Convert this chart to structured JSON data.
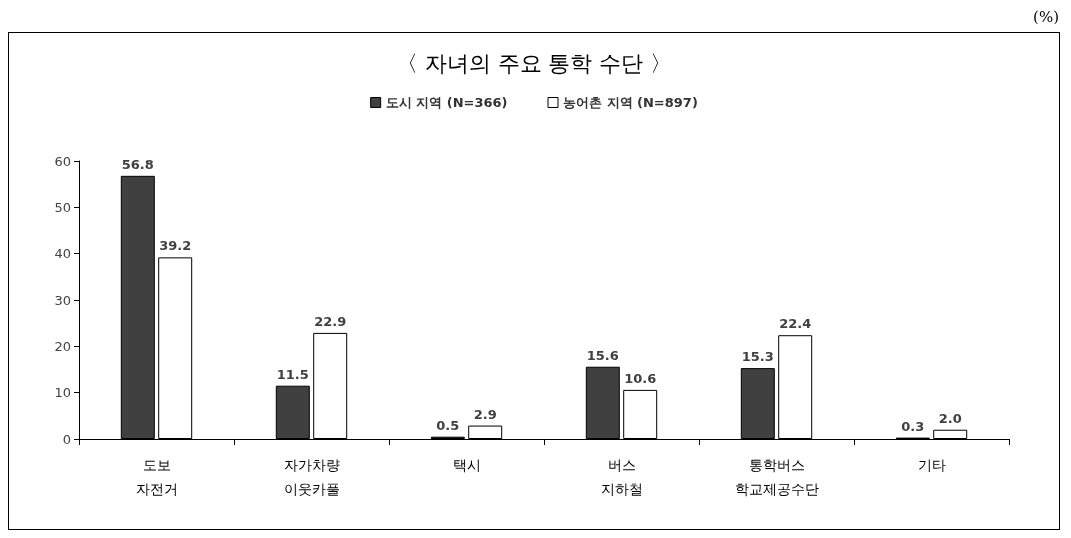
{
  "chart_data": {
    "type": "bar",
    "title": "〈 자녀의 주요 통학 수단 〉",
    "annotations": [
      "(%)"
    ],
    "categories": [
      "도보\n자전거",
      "자가차량\n이웃카풀",
      "택시",
      "버스\n지하철",
      "통학버스\n학교제공수단",
      "기타"
    ],
    "series": [
      {
        "name": "도시 지역 (N=366)",
        "color": "#404040",
        "values": [
          56.8,
          11.5,
          0.5,
          15.6,
          15.3,
          0.3
        ],
        "value_labels": [
          "56.8",
          "11.5",
          "0.5",
          "15.6",
          "15.3",
          "0.3"
        ]
      },
      {
        "name": "농어촌 지역 (N=897)",
        "color": "#ffffff",
        "values": [
          39.2,
          22.9,
          2.9,
          10.6,
          22.4,
          2.0
        ],
        "value_labels": [
          "39.2",
          "22.9",
          "2.9",
          "10.6",
          "22.4",
          "2.0"
        ]
      }
    ],
    "ylim": [
      0,
      60
    ],
    "yticks": [
      0,
      10,
      20,
      30,
      40,
      50,
      60
    ],
    "legend": "top",
    "grid": false
  }
}
